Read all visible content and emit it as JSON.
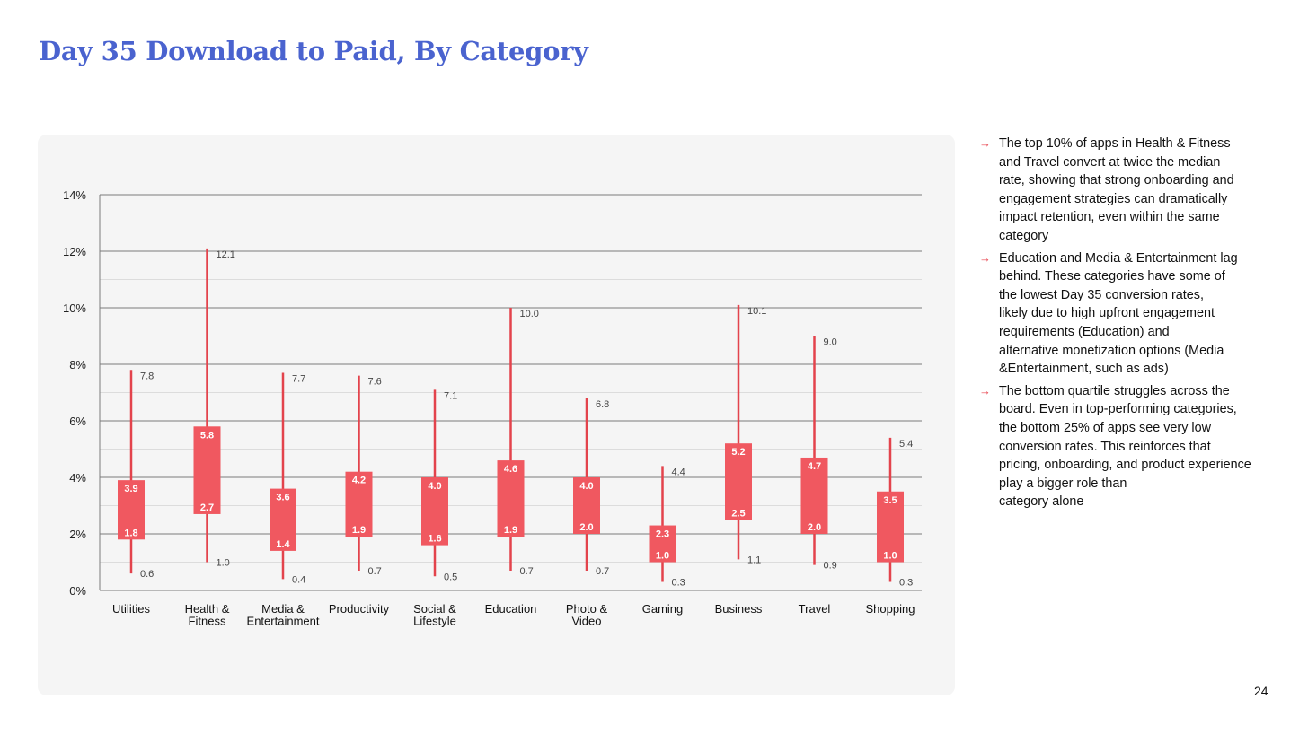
{
  "page": {
    "title": "Day 35 Download to Paid, By Category",
    "page_number": "24"
  },
  "colors": {
    "title": "#4a63cf",
    "box": "#f05860",
    "whisker": "#e3434c",
    "panel": "#f5f5f5",
    "arrow": "#e8434e"
  },
  "bullets": [
    {
      "icon": "arrow-right-icon",
      "lines": [
        "The top 10% of apps in Health & Fitness",
        "and Travel convert at twice the median",
        "rate, showing that strong onboarding and",
        "engagement strategies can dramatically",
        "impact retention, even within the same",
        "category"
      ]
    },
    {
      "icon": "arrow-right-icon",
      "lines": [
        "Education and Media & Entertainment lag",
        "behind. These categories have some of",
        "the lowest Day 35 conversion rates,",
        "likely due to high upfront engagement",
        "requirements (Education) and",
        "alternative monetization options (Media",
        "&Entertainment, such as ads)"
      ]
    },
    {
      "icon": "arrow-right-icon",
      "lines": [
        "The bottom quartile struggles across the",
        "board. Even in top-performing categories,",
        "the bottom 25% of apps see very low",
        "conversion rates. This reinforces that",
        "pricing, onboarding, and product experience",
        "play a bigger role than",
        "category alone"
      ]
    }
  ],
  "chart_data": {
    "type": "box",
    "title": "",
    "xlabel": "",
    "ylabel": "",
    "ylim": [
      0,
      14
    ],
    "y_ticks": [
      0,
      2,
      4,
      6,
      8,
      10,
      12,
      14
    ],
    "y_tick_labels": [
      "0%",
      "2%",
      "4%",
      "6%",
      "8%",
      "10%",
      "12%",
      "14%"
    ],
    "grid": true,
    "categories": [
      [
        "Utilities"
      ],
      [
        "Health &",
        "Fitness"
      ],
      [
        "Media &",
        "Entertainment"
      ],
      [
        "Productivity"
      ],
      [
        "Social &",
        "Lifestyle"
      ],
      [
        "Education"
      ],
      [
        "Photo &",
        "Video"
      ],
      [
        "Gaming"
      ],
      [
        "Business"
      ],
      [
        "Travel"
      ],
      [
        "Shopping"
      ]
    ],
    "series": [
      {
        "name": "max",
        "values": [
          7.8,
          12.1,
          7.7,
          7.6,
          7.1,
          10.0,
          6.8,
          4.4,
          10.1,
          9.0,
          5.4
        ]
      },
      {
        "name": "upper quartile",
        "values": [
          3.9,
          5.8,
          3.6,
          4.2,
          4.0,
          4.6,
          4.0,
          2.3,
          5.2,
          4.7,
          3.5
        ]
      },
      {
        "name": "lower quartile",
        "values": [
          1.8,
          2.7,
          1.4,
          1.9,
          1.6,
          1.9,
          2.0,
          1.0,
          2.5,
          2.0,
          1.0
        ]
      },
      {
        "name": "min",
        "values": [
          0.6,
          1.0,
          0.4,
          0.7,
          0.5,
          0.7,
          0.7,
          0.3,
          1.1,
          0.9,
          0.3
        ]
      }
    ]
  }
}
